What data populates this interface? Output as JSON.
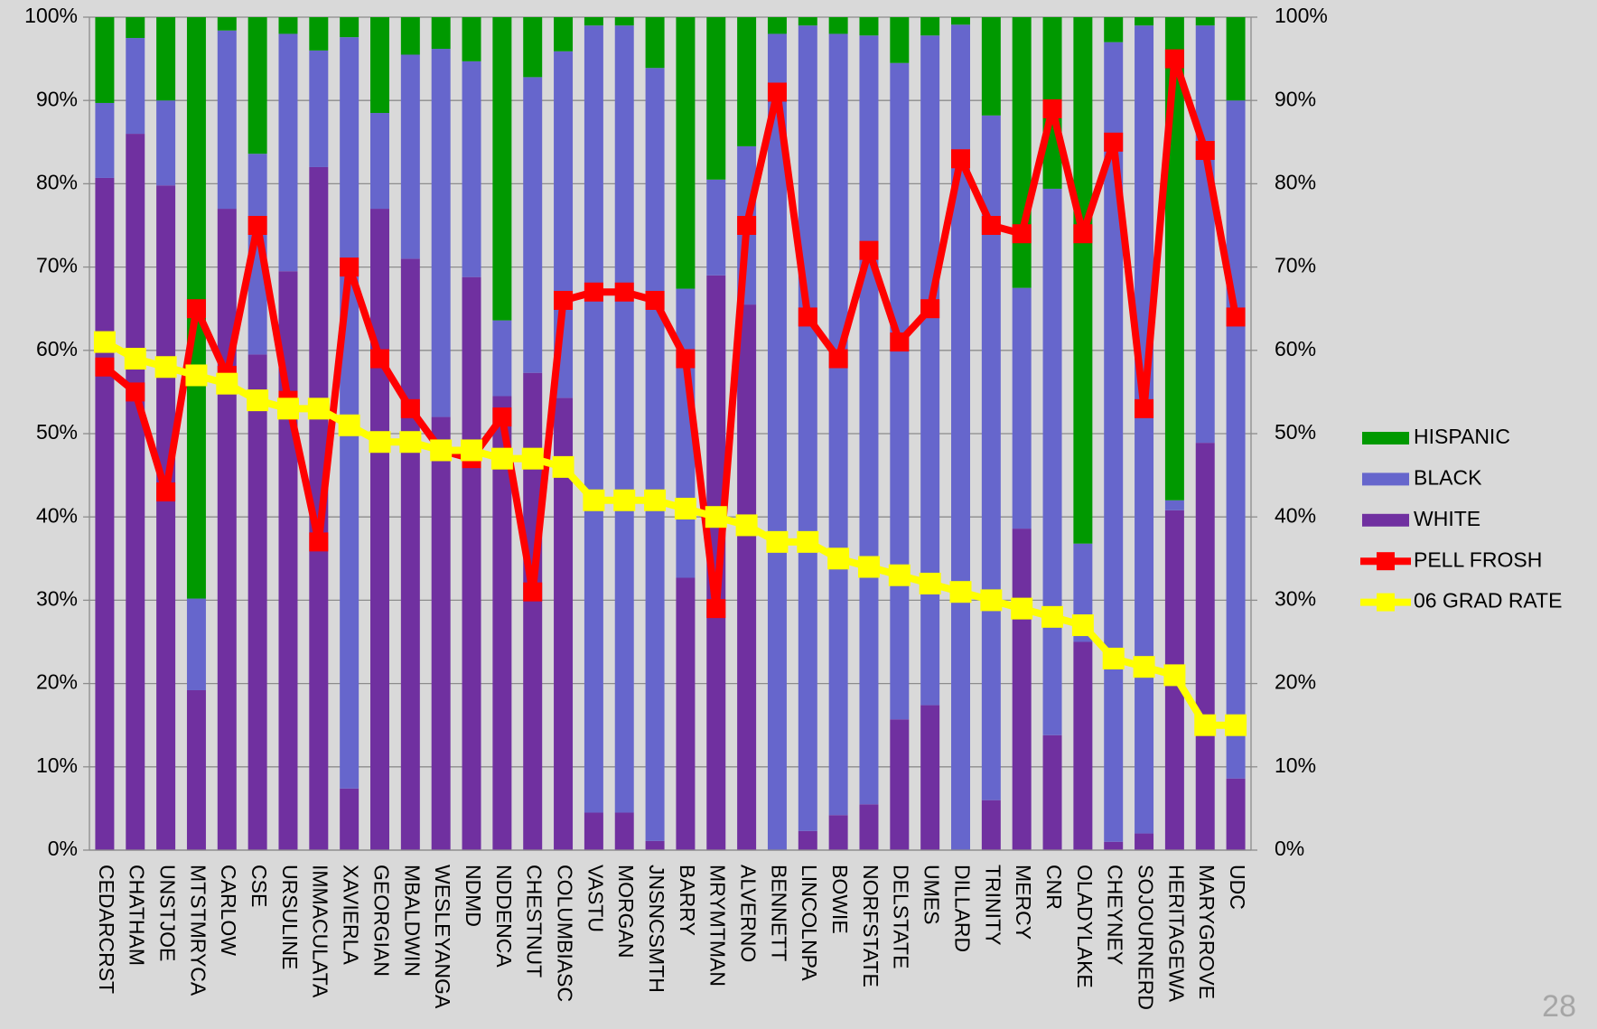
{
  "chart_data": {
    "type": "bar",
    "stacked": true,
    "categories": [
      "CEDARCRST",
      "CHATHAM",
      "UNSTJOE",
      "MTSTMRYCA",
      "CARLOW",
      "CSE",
      "URSULINE",
      "IMMACULATA",
      "XAVIERLA",
      "GEORGIAN",
      "MBALDWIN",
      "WESLEYANGA",
      "NDMD",
      "NDDENCA",
      "CHESTNUT",
      "COLUMBIASC",
      "VASTU",
      "MORGAN",
      "JNSNCSMTH",
      "BARRY",
      "MRYMTMAN",
      "ALVERNO",
      "BENNETT",
      "LINCOLNPA",
      "BOWIE",
      "NORFSTATE",
      "DELSTATE",
      "UMES",
      "DILLARD",
      "TRINITY",
      "MERCY",
      "CNR",
      "OLADYLAKE",
      "CHEYNEY",
      "SOJOURNERD",
      "HERITAGEWA",
      "MARYGROVE",
      "UDC"
    ],
    "series": [
      {
        "name": "WHITE",
        "type": "bar",
        "color": "#7030a0",
        "values": [
          80.7,
          86,
          79.8,
          19.2,
          77,
          59.5,
          69.5,
          82,
          7.4,
          77,
          71,
          52,
          68.8,
          54.5,
          57.3,
          54.3,
          4.5,
          4.5,
          1.1,
          32.7,
          69,
          65.5,
          0,
          2.3,
          4.2,
          5.5,
          15.7,
          17.4,
          0,
          6,
          38.6,
          13.8,
          25,
          1,
          2,
          40.8,
          48.9,
          8.6
        ]
      },
      {
        "name": "BLACK",
        "type": "bar",
        "color": "#6666cc",
        "values": [
          9,
          11.5,
          10.2,
          11,
          21.4,
          24.1,
          28.5,
          14,
          90.2,
          11.5,
          24.5,
          44.2,
          25.9,
          9.1,
          35.5,
          41.6,
          94.5,
          94.5,
          92.8,
          34.7,
          11.5,
          19,
          98,
          96.7,
          93.8,
          92.3,
          78.8,
          80.4,
          99.1,
          82.2,
          28.9,
          65.6,
          11.8,
          96,
          97,
          1.2,
          50.1,
          81.4
        ]
      },
      {
        "name": "HISPANIC",
        "type": "bar",
        "color": "#009900",
        "values": [
          10.3,
          2.5,
          10,
          69.8,
          1.6,
          16.4,
          2,
          4,
          2.4,
          11.5,
          4.5,
          3.8,
          5.3,
          36.4,
          7.2,
          4.1,
          1,
          1,
          6.1,
          32.6,
          19.5,
          15.5,
          2,
          1,
          2,
          2.2,
          5.5,
          2.2,
          0.9,
          11.8,
          32.5,
          20.6,
          63.2,
          3,
          1,
          58,
          1,
          10
        ]
      },
      {
        "name": "PELL FROSH",
        "type": "line",
        "axis": "y2",
        "color": "#ff0000",
        "values": [
          58,
          55,
          43,
          65,
          57,
          75,
          54,
          37,
          70,
          59,
          53,
          48,
          47,
          52,
          31,
          66,
          67,
          67,
          66,
          59,
          29,
          75,
          91,
          64,
          59,
          72,
          61,
          65,
          83,
          75,
          74,
          89,
          74,
          85,
          53,
          95,
          84,
          64
        ]
      },
      {
        "name": "06 GRAD RATE",
        "type": "line",
        "axis": "y2",
        "color": "#ffff00",
        "values": [
          61,
          59,
          58,
          57,
          56,
          54,
          53,
          53,
          51,
          49,
          49,
          48,
          48,
          47,
          47,
          46,
          42,
          42,
          42,
          41,
          40,
          39,
          37,
          37,
          35,
          34,
          33,
          32,
          31,
          30,
          29,
          28,
          27,
          23,
          22,
          21,
          15,
          15
        ]
      }
    ],
    "ylim": [
      0,
      100
    ],
    "yticks": [
      {
        "value": 0,
        "label": "0%"
      },
      {
        "value": 10,
        "label": "10%"
      },
      {
        "value": 20,
        "label": "20%"
      },
      {
        "value": 30,
        "label": "30%"
      },
      {
        "value": 40,
        "label": "40%"
      },
      {
        "value": 50,
        "label": "50%"
      },
      {
        "value": 60,
        "label": "60%"
      },
      {
        "value": 70,
        "label": "70%"
      },
      {
        "value": 80,
        "label": "80%"
      },
      {
        "value": 90,
        "label": "90%"
      },
      {
        "value": 100,
        "label": "100%"
      }
    ],
    "y2lim": [
      0,
      100
    ],
    "y2ticks": [
      {
        "value": 0,
        "label": "0%"
      },
      {
        "value": 10,
        "label": "10%"
      },
      {
        "value": 20,
        "label": "20%"
      },
      {
        "value": 30,
        "label": "30%"
      },
      {
        "value": 40,
        "label": "40%"
      },
      {
        "value": 50,
        "label": "50%"
      },
      {
        "value": 60,
        "label": "60%"
      },
      {
        "value": 70,
        "label": "70%"
      },
      {
        "value": 80,
        "label": "80%"
      },
      {
        "value": 90,
        "label": "90%"
      },
      {
        "value": 100,
        "label": "100%"
      }
    ],
    "grid": true,
    "legend": "right"
  },
  "page_number": "28"
}
